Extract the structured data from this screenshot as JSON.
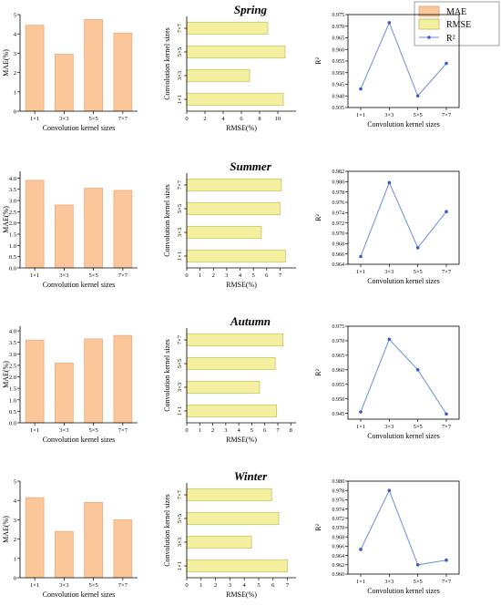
{
  "legend": {
    "mae": "MAE",
    "rmse": "RMSE",
    "r2": "R²"
  },
  "colors": {
    "mae_fill": "#fbc79a",
    "mae_stroke": "#e0a070",
    "rmse_fill": "#f5f0a0",
    "rmse_stroke": "#b9b35a",
    "r2_line": "#6b8ce0",
    "r2_marker": "#3a5cc8"
  },
  "chart_data": [
    {
      "season": "Spring",
      "categories": [
        "1×1",
        "3×3",
        "5×5",
        "7×7"
      ],
      "mae": {
        "type": "bar",
        "values": [
          4.45,
          2.95,
          4.75,
          4.05
        ],
        "ylim": [
          0,
          5
        ],
        "ticks": [
          "0",
          "1",
          "2",
          "3",
          "4",
          "5"
        ],
        "ylabel": "MAE(%)",
        "xlabel": "Convolution kernel sizes"
      },
      "rmse": {
        "type": "bar",
        "orientation": "horizontal",
        "values": [
          10.6,
          6.9,
          10.8,
          8.9
        ],
        "xlim": [
          0,
          12
        ],
        "ticks": [
          "0",
          "2",
          "4",
          "6",
          "8",
          "10"
        ],
        "xlabel": "RMSE(%)",
        "ylabel": "Convolution kernel sizes"
      },
      "r2": {
        "type": "line",
        "values": [
          0.943,
          0.9715,
          0.94,
          0.954
        ],
        "ylim": [
          0.935,
          0.975
        ],
        "ticks": [
          "0.935",
          "0.940",
          "0.945",
          "0.950",
          "0.955",
          "0.960",
          "0.965",
          "0.970",
          "0.975"
        ],
        "ylabel": "R²",
        "xlabel": "Convolution kernel sizes"
      }
    },
    {
      "season": "Summer",
      "categories": [
        "1×1",
        "3×3",
        "5×5",
        "7×7"
      ],
      "mae": {
        "type": "bar",
        "values": [
          3.9,
          2.8,
          3.55,
          3.45
        ],
        "ylim": [
          0,
          4.3
        ],
        "ticks": [
          "0.0",
          "0.5",
          "1.0",
          "1.5",
          "2.0",
          "2.5",
          "3.0",
          "3.5",
          "4.0"
        ],
        "ylabel": "MAE(%)",
        "xlabel": "Convolution kernel sizes"
      },
      "rmse": {
        "type": "bar",
        "orientation": "horizontal",
        "values": [
          7.4,
          5.6,
          7.0,
          7.1
        ],
        "xlim": [
          0,
          8.2
        ],
        "ticks": [
          "0",
          "1",
          "2",
          "3",
          "4",
          "5",
          "6",
          "7"
        ],
        "xlabel": "RMSE(%)",
        "ylabel": "Convolution kernel sizes"
      },
      "r2": {
        "type": "line",
        "values": [
          0.9655,
          0.9798,
          0.9672,
          0.9742
        ],
        "ylim": [
          0.964,
          0.982
        ],
        "ticks": [
          "0.964",
          "0.966",
          "0.968",
          "0.970",
          "0.972",
          "0.974",
          "0.976",
          "0.978",
          "0.980",
          "0.982"
        ],
        "ylabel": "R²",
        "xlabel": "Convolution kernel sizes"
      }
    },
    {
      "season": "Autumn",
      "categories": [
        "1×1",
        "3×3",
        "5×5",
        "7×7"
      ],
      "mae": {
        "type": "bar",
        "values": [
          3.6,
          2.6,
          3.65,
          3.8
        ],
        "ylim": [
          0,
          4.2
        ],
        "ticks": [
          "0.0",
          "0.5",
          "1.0",
          "1.5",
          "2.0",
          "2.5",
          "3.0",
          "3.5",
          "4.0"
        ],
        "ylabel": "MAE(%)",
        "xlabel": "Convolution kernel sizes"
      },
      "rmse": {
        "type": "bar",
        "orientation": "horizontal",
        "values": [
          6.9,
          5.6,
          6.8,
          7.4
        ],
        "xlim": [
          0,
          8.4
        ],
        "ticks": [
          "0",
          "1",
          "2",
          "3",
          "4",
          "5",
          "6",
          "7",
          "8"
        ],
        "xlabel": "RMSE(%)",
        "ylabel": "Convolution kernel sizes"
      },
      "r2": {
        "type": "line",
        "values": [
          0.9455,
          0.9705,
          0.96,
          0.9448
        ],
        "ylim": [
          0.943,
          0.975
        ],
        "ticks": [
          "0.945",
          "0.950",
          "0.955",
          "0.960",
          "0.965",
          "0.970",
          "0.975"
        ],
        "ylabel": "R²",
        "xlabel": "Convolution kernel sizes"
      }
    },
    {
      "season": "Winter",
      "categories": [
        "1×1",
        "3×3",
        "5×5",
        "7×7"
      ],
      "mae": {
        "type": "bar",
        "values": [
          4.15,
          2.4,
          3.9,
          3.0
        ],
        "ylim": [
          0,
          5
        ],
        "ticks": [
          "0",
          "1",
          "2",
          "3",
          "4",
          "5"
        ],
        "ylabel": "MAE(%)",
        "xlabel": "Convolution kernel sizes"
      },
      "rmse": {
        "type": "bar",
        "orientation": "horizontal",
        "values": [
          7.0,
          4.5,
          6.4,
          5.9
        ],
        "xlim": [
          0,
          7.6
        ],
        "ticks": [
          "0",
          "1",
          "2",
          "3",
          "4",
          "5",
          "6",
          "7"
        ],
        "xlabel": "RMSE(%)",
        "ylabel": "Convolution kernel sizes"
      },
      "r2": {
        "type": "line",
        "values": [
          0.9653,
          0.978,
          0.962,
          0.963
        ],
        "ylim": [
          0.96,
          0.98
        ],
        "ticks": [
          "0.960",
          "0.962",
          "0.964",
          "0.966",
          "0.968",
          "0.970",
          "0.972",
          "0.974",
          "0.976",
          "0.978",
          "0.980"
        ],
        "ylabel": "R²",
        "xlabel": "Convolution kernel sizes"
      }
    }
  ]
}
